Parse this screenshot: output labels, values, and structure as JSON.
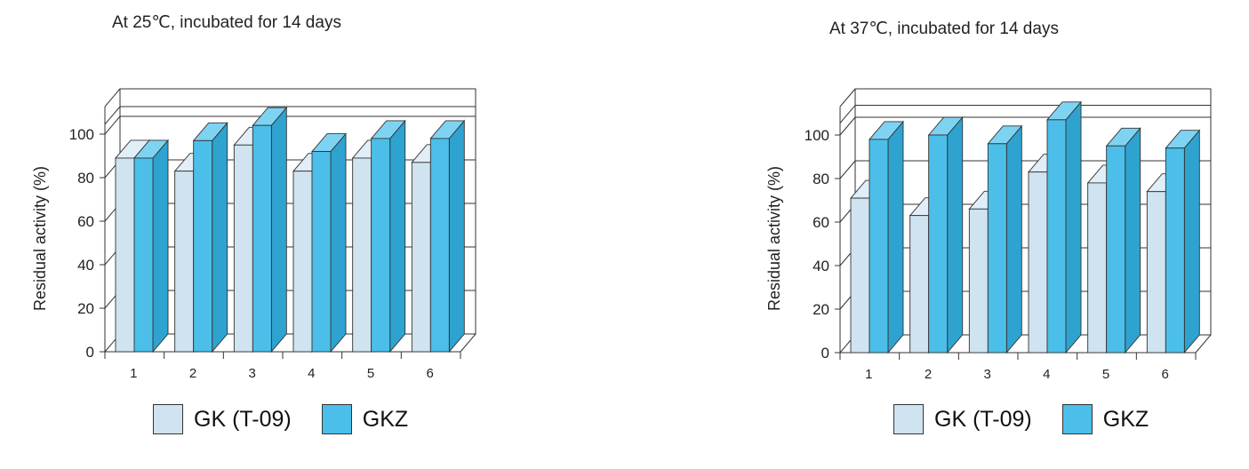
{
  "colors": {
    "gk_front": "#cfe3f0",
    "gk_side": "#b5cfe0",
    "gk_top": "#e1eef7",
    "gkz_front": "#4bbfe9",
    "gkz_side": "#2ea3d0",
    "gkz_top": "#7fd3f2",
    "frame": "#333333"
  },
  "legend": [
    {
      "label": "GK (T-09)",
      "color": "#cfe3f0"
    },
    {
      "label": "GKZ",
      "color": "#4bbfe9"
    }
  ],
  "chart_data": [
    {
      "type": "bar",
      "style": "3d-clustered",
      "title": "At 25℃, incubated for 14 days",
      "ylabel": "Residual activity (%)",
      "xlabel": "",
      "categories": [
        "1",
        "2",
        "3",
        "4",
        "5",
        "6"
      ],
      "series": [
        {
          "name": "GK (T-09)",
          "values": [
            89,
            83,
            95,
            83,
            89,
            87
          ]
        },
        {
          "name": "GKZ",
          "values": [
            89,
            97,
            104,
            92,
            98,
            98
          ]
        }
      ],
      "ylim": [
        0,
        100
      ],
      "yticks": [
        "0",
        "20",
        "40",
        "60",
        "80",
        "100"
      ],
      "grid": true,
      "legend_position": "bottom"
    },
    {
      "type": "bar",
      "style": "3d-clustered",
      "title": "At 37℃, incubated for 14 days",
      "ylabel": "Residual activity (%)",
      "xlabel": "",
      "categories": [
        "1",
        "2",
        "3",
        "4",
        "5",
        "6"
      ],
      "series": [
        {
          "name": "GK (T-09)",
          "values": [
            71,
            63,
            66,
            83,
            78,
            74
          ]
        },
        {
          "name": "GKZ",
          "values": [
            98,
            100,
            96,
            107,
            95,
            94
          ]
        }
      ],
      "ylim": [
        0,
        100
      ],
      "yticks": [
        "0",
        "20",
        "40",
        "60",
        "80",
        "100"
      ],
      "grid": true,
      "legend_position": "bottom"
    }
  ]
}
